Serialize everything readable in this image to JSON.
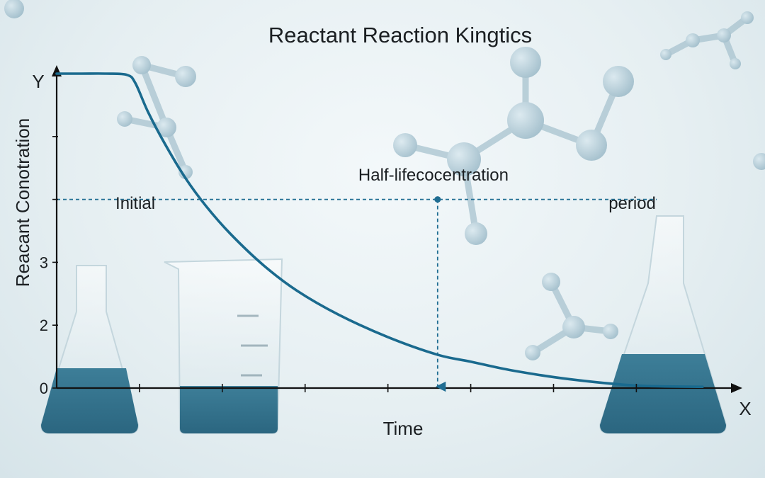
{
  "chart_data": {
    "type": "line",
    "title": "Reactant Reaction Kingtics",
    "xlabel": "Time",
    "ylabel": "Reacant Conotration",
    "x_axis_letter": "X",
    "y_axis_letter": "Y",
    "y_tick_labels": [
      "0",
      "2",
      "3"
    ],
    "x_ticks": [
      1,
      2,
      3,
      4,
      5,
      6,
      7
    ],
    "y_ticks": [
      0,
      1,
      2,
      3,
      4
    ],
    "xlim": [
      0,
      8.1
    ],
    "ylim": [
      0,
      5
    ],
    "grid": false,
    "series": [
      {
        "x": [
          0,
          0.3,
          0.6,
          0.85,
          0.95,
          1.1,
          1.3,
          1.55,
          1.8,
          2.1,
          2.5,
          2.9,
          3.4,
          4.0,
          4.6,
          5.0,
          5.5,
          6.2,
          7.0,
          7.8
        ],
        "y": [
          5.0,
          5.0,
          5.0,
          4.98,
          4.85,
          4.4,
          3.9,
          3.35,
          2.9,
          2.45,
          1.95,
          1.55,
          1.17,
          0.81,
          0.53,
          0.42,
          0.28,
          0.14,
          0.04,
          0.02
        ],
        "color": "#1a6a8e"
      }
    ],
    "annotations": [
      {
        "text": "Initial",
        "x": 0.95,
        "y": 2.85
      },
      {
        "text": "Half-lifecocentration",
        "x": 4.55,
        "y": 3.3
      },
      {
        "text": "period",
        "x": 6.95,
        "y": 2.85
      }
    ],
    "reference_line": {
      "y": 3.0,
      "x_marker": 4.6,
      "color": "#1f6d92"
    }
  }
}
